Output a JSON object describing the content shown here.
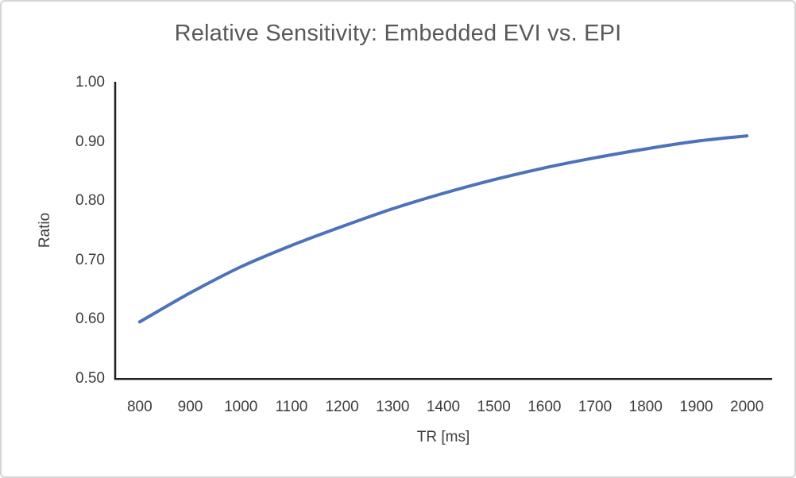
{
  "chart_data": {
    "type": "line",
    "title": "Relative Sensitivity: Embedded EVI vs. EPI",
    "xlabel": "TR [ms]",
    "ylabel": "Ratio",
    "x": [
      800,
      900,
      1000,
      1100,
      1200,
      1300,
      1400,
      1500,
      1600,
      1700,
      1800,
      1900,
      2000
    ],
    "values": [
      0.596,
      0.645,
      0.689,
      0.725,
      0.757,
      0.787,
      0.813,
      0.836,
      0.856,
      0.873,
      0.888,
      0.901,
      0.91
    ],
    "x_tick_labels": [
      "800",
      "900",
      "1000",
      "1100",
      "1200",
      "1300",
      "1400",
      "1500",
      "1600",
      "1700",
      "1800",
      "1900",
      "2000"
    ],
    "y_ticks": [
      0.5,
      0.6,
      0.7,
      0.8,
      0.9,
      1.0
    ],
    "y_tick_labels": [
      "0.50",
      "0.60",
      "0.70",
      "0.80",
      "0.90",
      "1.00"
    ],
    "ylim": [
      0.5,
      1.0
    ],
    "grid": false,
    "legend": "none",
    "line_color": "#4d72ba",
    "axis_color": "#1f1f1f",
    "tick_text_color": "#3d3d3d",
    "title_color": "#595959"
  }
}
